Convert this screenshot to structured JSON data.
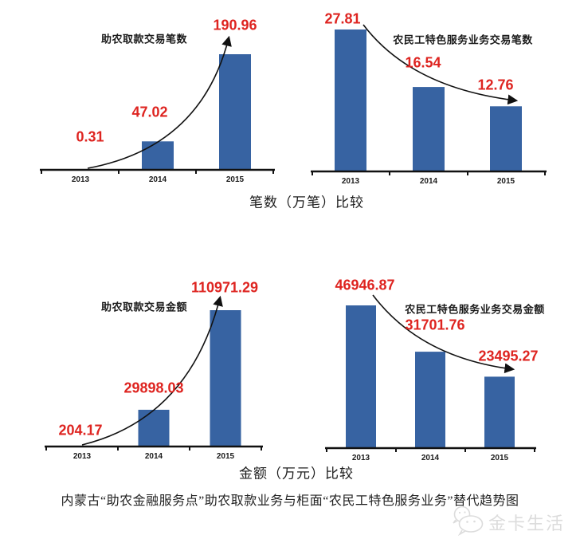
{
  "figure": {
    "captions": {
      "count_axis": "笔数（万笔）比较",
      "amount_axis": "金额（万元）比较",
      "main": "内蒙古“助农金融服务点”助农取款业务与柜面“农民工特色服务业务”替代趋势图"
    },
    "watermark": {
      "text": "金卡生活",
      "icon": "chat-bubbles-smiley-logo"
    },
    "colors": {
      "bar": "#3763A2",
      "value_label": "#DE2420",
      "axis": "#111111",
      "watermark": "#DCDCDC"
    }
  },
  "chart_data": [
    {
      "type": "bar",
      "title": "助农取款交易笔数",
      "unit": "万笔",
      "categories": [
        "2013",
        "2014",
        "2015"
      ],
      "values": [
        0.31,
        47.02,
        190.96
      ],
      "value_labels": [
        "0.31",
        "47.02",
        "190.96"
      ],
      "trend": "increasing",
      "annotation": "curved-arrow-up",
      "baseline": 0,
      "grid": false,
      "legend": false
    },
    {
      "type": "bar",
      "title": "农民工特色服务业务交易笔数",
      "unit": "万笔",
      "categories": [
        "2013",
        "2014",
        "2015"
      ],
      "values": [
        27.81,
        16.54,
        12.76
      ],
      "value_labels": [
        "27.81",
        "16.54",
        "12.76"
      ],
      "trend": "decreasing",
      "annotation": "curved-arrow-down",
      "baseline": 0,
      "grid": false,
      "legend": false
    },
    {
      "type": "bar",
      "title": "助农取款交易金额",
      "unit": "万元",
      "categories": [
        "2013",
        "2014",
        "2015"
      ],
      "values": [
        204.17,
        29898.03,
        110971.29
      ],
      "value_labels": [
        "204.17",
        "29898.03",
        "110971.29"
      ],
      "trend": "increasing",
      "annotation": "curved-arrow-up",
      "baseline": 0,
      "grid": false,
      "legend": false
    },
    {
      "type": "bar",
      "title": "农民工特色服务业务交易金额",
      "unit": "万元",
      "categories": [
        "2013",
        "2014",
        "2015"
      ],
      "values": [
        46946.87,
        31701.76,
        23495.27
      ],
      "value_labels": [
        "46946.87",
        "31701.76",
        "23495.27"
      ],
      "trend": "decreasing",
      "annotation": "curved-arrow-down",
      "baseline": 0,
      "grid": false,
      "legend": false
    }
  ]
}
